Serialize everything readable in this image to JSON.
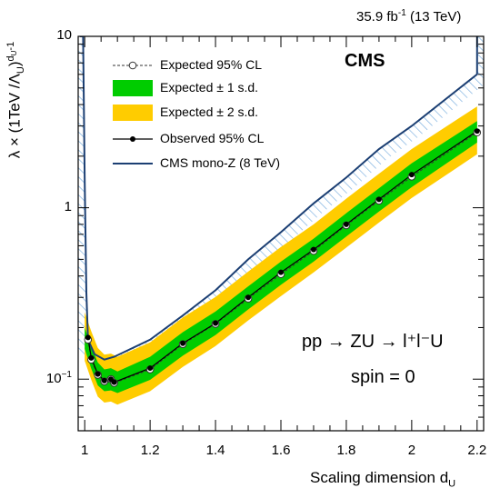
{
  "header": {
    "lumi_value": "35.9 fb",
    "lumi_exp": "-1",
    "lumi_energy": "(13 TeV)",
    "experiment": "CMS"
  },
  "annotations": {
    "process": "pp → ZU → l⁺l⁻U",
    "spin": "spin = 0"
  },
  "colors": {
    "band_1sd": "#00cc00",
    "band_2sd": "#ffcc00",
    "mono_z": "#1c3f73",
    "hatch": "#7fb2e0",
    "observed": "#000000"
  },
  "chart_data": {
    "type": "line",
    "xlabel": "Scaling dimension d",
    "xlabel_sub": "U",
    "ylabel": "λ × (1TeV /Λ",
    "ylabel_sub": "U",
    "ylabel_tail": ")",
    "ylabel_exp": "d",
    "ylabel_exp_sub": "U",
    "ylabel_exp_tail": "-1",
    "xlim": [
      0.98,
      2.22
    ],
    "ylim": [
      0.05,
      10
    ],
    "yscale": "log",
    "x_ticks": [
      "1",
      "1.2",
      "1.4",
      "1.6",
      "1.8",
      "2",
      "2.2"
    ],
    "y_ticks": [
      {
        "base": "10",
        "exp": "−1"
      },
      {
        "base": "1",
        "exp": ""
      },
      {
        "base": "10",
        "exp": ""
      }
    ],
    "legend_position": "top-left",
    "legend": {
      "expected": "Expected 95% CL",
      "band_1sd": "Expected ± 1 s.d.",
      "band_2sd": "Expected ± 2 s.d.",
      "observed": "Observed 95% CL",
      "mono_z": "CMS mono-Z (8 TeV)"
    },
    "observed": {
      "x": [
        1.01,
        1.02,
        1.04,
        1.06,
        1.08,
        1.09,
        1.2,
        1.3,
        1.4,
        1.5,
        1.6,
        1.7,
        1.8,
        1.9,
        2.0,
        2.2
      ],
      "y": [
        0.175,
        0.133,
        0.107,
        0.098,
        0.1,
        0.096,
        0.116,
        0.162,
        0.212,
        0.3,
        0.42,
        0.57,
        0.8,
        1.12,
        1.56,
        2.8
      ]
    },
    "expected": {
      "x": [
        1.01,
        1.02,
        1.04,
        1.06,
        1.08,
        1.09,
        1.2,
        1.3,
        1.4,
        1.5,
        1.6,
        1.7,
        1.8,
        1.9,
        2.0,
        2.2
      ],
      "y": [
        0.17,
        0.13,
        0.106,
        0.097,
        0.1,
        0.095,
        0.114,
        0.16,
        0.21,
        0.295,
        0.41,
        0.56,
        0.79,
        1.1,
        1.52,
        2.75
      ]
    },
    "band_1sd": {
      "x": [
        1.0,
        1.02,
        1.04,
        1.06,
        1.08,
        1.1,
        1.2,
        1.3,
        1.4,
        1.5,
        1.6,
        1.7,
        1.8,
        1.9,
        2.0,
        2.2
      ],
      "lo": [
        0.15,
        0.115,
        0.092,
        0.085,
        0.086,
        0.083,
        0.099,
        0.137,
        0.181,
        0.255,
        0.355,
        0.485,
        0.68,
        0.95,
        1.32,
        2.4
      ],
      "hi": [
        0.2,
        0.155,
        0.125,
        0.114,
        0.116,
        0.111,
        0.135,
        0.188,
        0.248,
        0.348,
        0.485,
        0.66,
        0.93,
        1.3,
        1.82,
        3.2
      ]
    },
    "band_2sd": {
      "x": [
        1.0,
        1.02,
        1.04,
        1.06,
        1.08,
        1.1,
        1.2,
        1.3,
        1.4,
        1.5,
        1.6,
        1.7,
        1.8,
        1.9,
        2.0,
        2.2
      ],
      "lo": [
        0.128,
        0.099,
        0.079,
        0.073,
        0.074,
        0.071,
        0.085,
        0.118,
        0.156,
        0.22,
        0.305,
        0.42,
        0.585,
        0.82,
        1.14,
        2.05
      ],
      "hi": [
        0.245,
        0.19,
        0.152,
        0.139,
        0.141,
        0.135,
        0.164,
        0.229,
        0.302,
        0.424,
        0.59,
        0.8,
        1.13,
        1.58,
        2.2,
        3.9
      ]
    },
    "mono_z": {
      "x": [
        0.985,
        0.995,
        1.0,
        1.005,
        1.01,
        1.03,
        1.06,
        1.09,
        1.2,
        1.3,
        1.4,
        1.5,
        1.6,
        1.7,
        1.8,
        1.9,
        2.0,
        2.2,
        2.2
      ],
      "y": [
        10,
        10,
        1.4,
        0.32,
        0.17,
        0.14,
        0.13,
        0.135,
        0.17,
        0.235,
        0.33,
        0.5,
        0.72,
        1.06,
        1.5,
        2.2,
        3.0,
        6.0,
        10
      ]
    }
  }
}
